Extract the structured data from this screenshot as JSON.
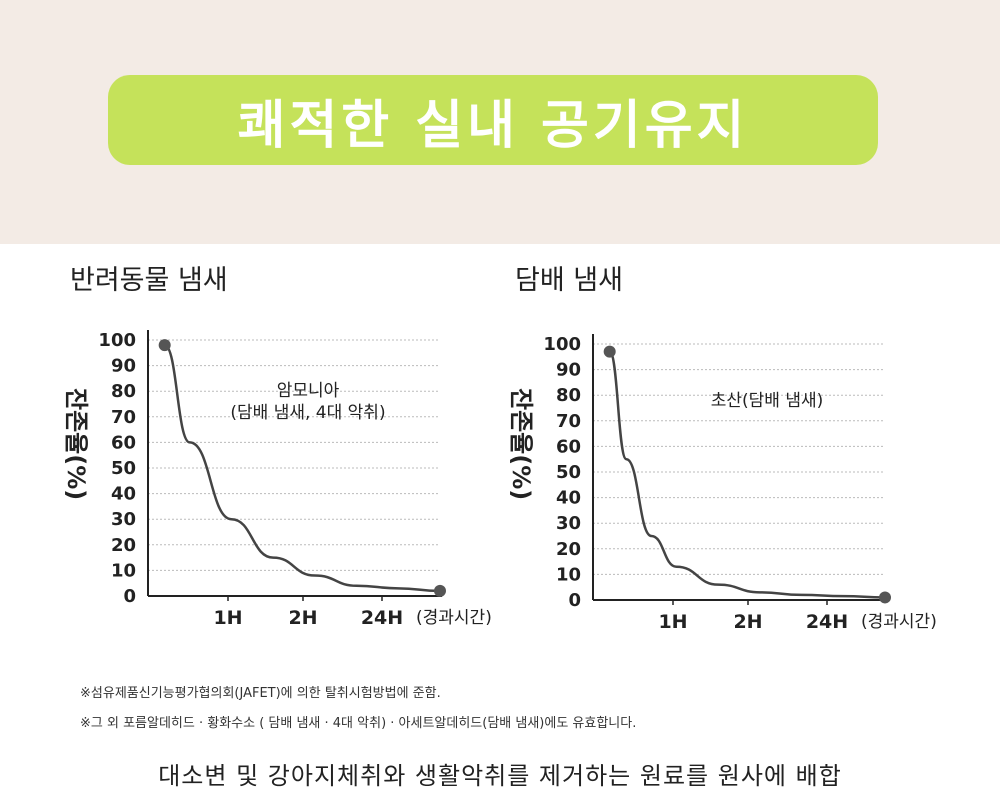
{
  "header": {
    "title": "쾌적한 실내 공기유지",
    "bg_color": "#f3ebe5",
    "pill_color": "#c5e25a"
  },
  "chart_data": [
    {
      "type": "line",
      "title": "반려동물 냄새",
      "ylabel": "잔존율(%)",
      "xlabel": "(경과시간)",
      "annotation": [
        "암모니아",
        "(담배 냄새, 4대 악취)"
      ],
      "ylim": [
        0,
        100
      ],
      "yticks": [
        "0",
        "10",
        "20",
        "30",
        "40",
        "50",
        "60",
        "70",
        "80",
        "90",
        "100"
      ],
      "xticks": [
        "1H",
        "2H",
        "24H"
      ],
      "series": [
        {
          "x": [
            0.2,
            0.5,
            1,
            1.5,
            2,
            2.5,
            3,
            3.5
          ],
          "values": [
            98,
            60,
            30,
            15,
            8,
            4,
            3,
            2
          ]
        }
      ]
    },
    {
      "type": "line",
      "title": "담배 냄새",
      "ylabel": "잔존율(%)",
      "xlabel": "(경과시간)",
      "annotation": [
        "초산(담배 냄새)"
      ],
      "ylim": [
        0,
        100
      ],
      "yticks": [
        "0",
        "10",
        "20",
        "30",
        "40",
        "50",
        "60",
        "70",
        "80",
        "90",
        "100"
      ],
      "xticks": [
        "1H",
        "2H",
        "24H"
      ],
      "series": [
        {
          "x": [
            0.2,
            0.4,
            0.7,
            1,
            1.5,
            2,
            2.5,
            3,
            3.5
          ],
          "values": [
            97,
            55,
            25,
            13,
            6,
            3,
            2,
            1.5,
            1
          ]
        }
      ]
    }
  ],
  "footnotes": [
    "※섬유제품신기능평가협의회(JAFET)에 의한 탈취시험방법에 준함.",
    "※그 외 포름알데히드 · 황화수소 ( 담배 냄새 · 4대 악취) · 아세트알데히드(담배 냄새)에도 유효합니다."
  ],
  "bottom_text": "대소변 및 강아지체취와 생활악취를 제거하는 원료를 원사에 배합"
}
